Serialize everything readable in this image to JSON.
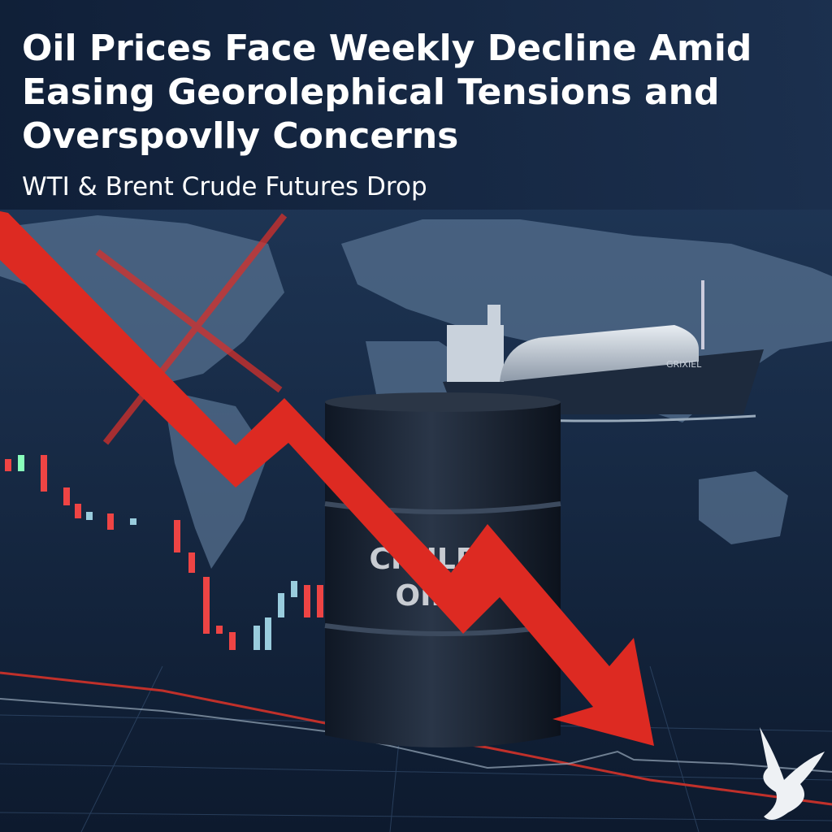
{
  "header": {
    "title_lines": [
      "Oil Prices Face Weekly Decline Amid",
      "Easing Georolephical Tensions and",
      "Overspovlly Concerns"
    ],
    "subtitle": "WTI & Brent Crude Futures Drop"
  },
  "barrel": {
    "label_lines": [
      "CRULE",
      "OIL"
    ]
  },
  "ship": {
    "name": "GRIXIEL"
  }
}
